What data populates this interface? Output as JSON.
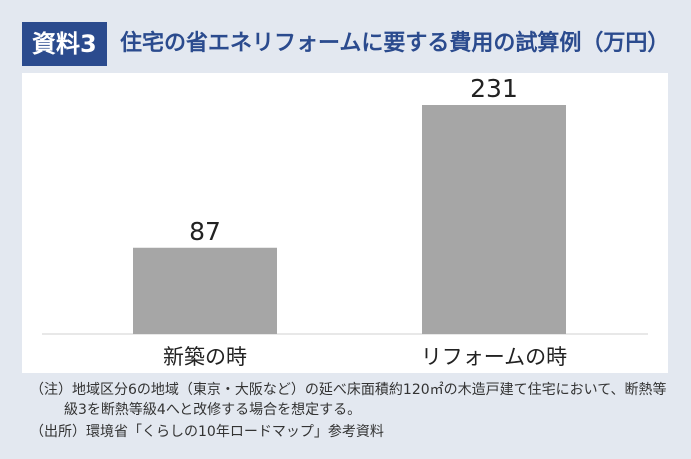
{
  "header": {
    "label": "資料3",
    "title": "住宅の省エネリフォームに要する費用の試算例（万円）"
  },
  "chart_data": {
    "type": "bar",
    "categories": [
      "新築の時",
      "リフォームの時"
    ],
    "values": [
      87,
      231
    ],
    "color": "#a6a6a6"
  },
  "notes": {
    "note": "（注）地域区分6の地域（東京・大阪など）の延べ床面積約120㎡の木造戸建て住宅において、断熱等級3を断熱等級4へと改修する場合を想定する。",
    "source": "（出所）環境省「くらしの10年ロードマップ」参考資料"
  }
}
